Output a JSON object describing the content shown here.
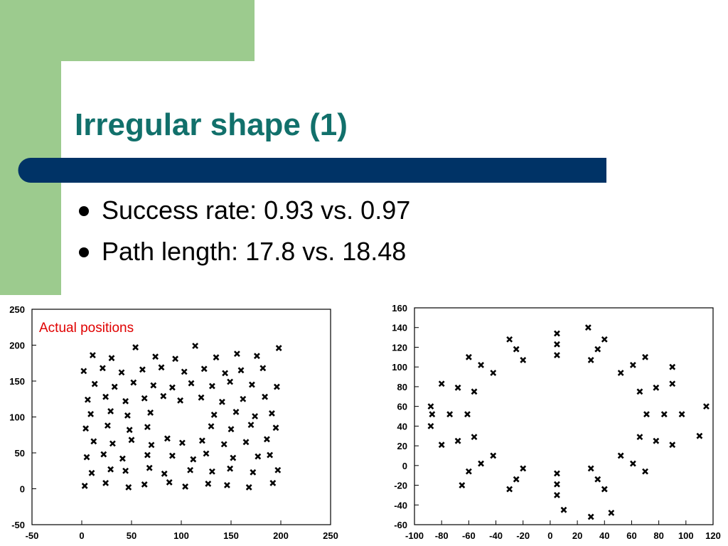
{
  "slide": {
    "title": "Irregular shape (1)",
    "bullets": [
      "Success rate: 0.93 vs. 0.97",
      "Path length: 17.8 vs. 18.48"
    ]
  },
  "chart_data": [
    {
      "type": "scatter",
      "annotation": "Actual positions",
      "color": "#000000",
      "xlim": [
        -50,
        250
      ],
      "ylim": [
        -50,
        250
      ],
      "xticks": [
        -50,
        0,
        50,
        100,
        150,
        200,
        250
      ],
      "yticks": [
        -50,
        0,
        50,
        100,
        150,
        200,
        250
      ],
      "x": [
        3,
        24,
        47,
        63,
        88,
        104,
        127,
        146,
        168,
        192,
        10,
        29,
        44,
        68,
        83,
        109,
        131,
        149,
        172,
        197,
        5,
        22,
        41,
        66,
        91,
        112,
        125,
        152,
        177,
        189,
        12,
        31,
        50,
        70,
        86,
        101,
        121,
        143,
        165,
        186,
        4,
        26,
        48,
        66,
        130,
        150,
        170,
        195,
        9,
        29,
        46,
        69,
        133,
        155,
        174,
        191,
        6,
        24,
        44,
        63,
        82,
        99,
        120,
        141,
        162,
        184,
        13,
        33,
        52,
        72,
        91,
        110,
        131,
        149,
        171,
        196,
        2,
        21,
        40,
        61,
        80,
        103,
        123,
        144,
        160,
        182,
        11,
        30,
        54,
        74,
        94,
        114,
        135,
        156,
        176,
        198
      ],
      "values": [
        4,
        8,
        2,
        6,
        9,
        3,
        7,
        5,
        2,
        8,
        22,
        27,
        25,
        29,
        21,
        26,
        24,
        28,
        23,
        26,
        44,
        48,
        42,
        47,
        46,
        41,
        49,
        43,
        45,
        47,
        66,
        63,
        68,
        61,
        70,
        64,
        67,
        62,
        65,
        69,
        84,
        88,
        82,
        86,
        87,
        83,
        89,
        85,
        104,
        108,
        102,
        106,
        103,
        107,
        101,
        105,
        124,
        128,
        122,
        126,
        129,
        123,
        127,
        121,
        125,
        128,
        146,
        142,
        148,
        144,
        141,
        147,
        143,
        149,
        145,
        142,
        164,
        168,
        162,
        166,
        169,
        163,
        167,
        161,
        165,
        168,
        186,
        182,
        197,
        184,
        181,
        199,
        183,
        188,
        185,
        196
      ]
    },
    {
      "type": "scatter",
      "color": "#000000",
      "xlim": [
        -100,
        120
      ],
      "ylim": [
        -60,
        160
      ],
      "xticks": [
        -100,
        -80,
        -60,
        -40,
        -20,
        0,
        20,
        40,
        60,
        80,
        100,
        120
      ],
      "yticks": [
        -60,
        -40,
        -20,
        0,
        20,
        40,
        60,
        80,
        100,
        120,
        140,
        160
      ],
      "x": [
        71,
        66,
        52,
        30,
        5,
        -20,
        -42,
        -56,
        -61,
        -56,
        -42,
        -20,
        5,
        30,
        52,
        66,
        97,
        90,
        70,
        40,
        5,
        -30,
        -60,
        -80,
        -87,
        -80,
        -60,
        -30,
        5,
        40,
        70,
        90,
        84,
        78,
        61,
        35,
        5,
        -25,
        -51,
        -68,
        -74,
        -68,
        -51,
        -25,
        5,
        35,
        61,
        78,
        -88,
        -88,
        110,
        115,
        28,
        10,
        30,
        45,
        90,
        -65
      ],
      "values": [
        52,
        75,
        94,
        107,
        112,
        107,
        94,
        75,
        52,
        29,
        10,
        -3,
        -8,
        -3,
        10,
        29,
        52,
        83,
        110,
        128,
        134,
        128,
        110,
        83,
        52,
        21,
        -6,
        -24,
        -30,
        -24,
        -6,
        21,
        52,
        79,
        102,
        118,
        123,
        118,
        102,
        79,
        52,
        25,
        2,
        -14,
        -19,
        -14,
        2,
        25,
        40,
        60,
        30,
        60,
        140,
        -45,
        -52,
        -48,
        100,
        -20
      ]
    }
  ]
}
